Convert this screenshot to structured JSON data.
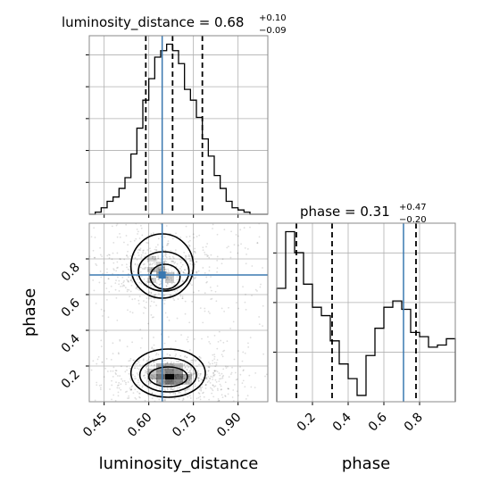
{
  "colors": {
    "truth": "#3a78b0",
    "histogram": "#000000",
    "contour": "#000000",
    "grid": "#b0b0b0",
    "density": "#000000"
  },
  "chart_data": {
    "type": "corner",
    "parameters": [
      "luminosity_distance",
      "phase"
    ],
    "truths": {
      "luminosity_distance": 0.645,
      "phase": 0.71
    },
    "quantiles": {
      "luminosity_distance": [
        0.59,
        0.68,
        0.78
      ],
      "phase": [
        0.11,
        0.31,
        0.78
      ]
    },
    "titles": [
      {
        "param": "luminosity_distance",
        "main": "luminosity_distance = 0.68",
        "upper": "+0.10",
        "lower": "−0.09"
      },
      {
        "param": "phase",
        "main": "phase = 0.31",
        "upper": "+0.47",
        "lower": "−0.20"
      }
    ],
    "panels": [
      {
        "id": "hist-luminosity_distance",
        "type": "histogram",
        "param": "luminosity_distance",
        "xlim": [
          0.4,
          1.0
        ],
        "bin_edges": [
          0.4,
          0.42,
          0.44,
          0.46,
          0.48,
          0.5,
          0.52,
          0.54,
          0.56,
          0.58,
          0.6,
          0.62,
          0.64,
          0.66,
          0.68,
          0.7,
          0.72,
          0.74,
          0.76,
          0.78,
          0.8,
          0.82,
          0.84,
          0.86,
          0.88,
          0.9,
          0.92,
          0.94,
          0.96,
          0.98,
          1.0
        ],
        "counts": [
          0,
          1,
          3,
          6,
          8,
          12,
          17,
          28,
          40,
          53,
          63,
          73,
          76,
          79,
          76,
          70,
          58,
          53,
          45,
          35,
          27,
          18,
          12,
          6,
          3,
          2,
          1,
          0,
          0,
          0
        ],
        "xticks": [
          0.45,
          0.6,
          0.75,
          0.9
        ],
        "yticks_count": 5,
        "show_tick_labels": false
      },
      {
        "id": "hist-phase",
        "type": "histogram",
        "param": "phase",
        "xlim": [
          0.0,
          1.0
        ],
        "bin_edges": [
          0.0,
          0.05,
          0.1,
          0.15,
          0.2,
          0.25,
          0.3,
          0.35,
          0.4,
          0.45,
          0.5,
          0.55,
          0.6,
          0.65,
          0.7,
          0.75,
          0.8,
          0.85,
          0.9,
          0.95,
          1.0
        ],
        "counts": [
          54,
          81,
          71,
          56,
          45,
          41,
          29,
          18,
          11,
          3,
          22,
          35,
          45,
          48,
          44,
          33,
          31,
          26,
          27,
          30
        ],
        "xticks": [
          0.2,
          0.4,
          0.6,
          0.8
        ],
        "xtick_labels": [
          "0.2",
          "0.4",
          "0.6",
          "0.8"
        ],
        "yticks_count": 3,
        "show_tick_labels": true,
        "xlabel": "phase"
      },
      {
        "id": "density-2d",
        "type": "2d-density",
        "x_param": "luminosity_distance",
        "y_param": "phase",
        "xlim": [
          0.4,
          1.0
        ],
        "ylim": [
          0.0,
          1.0
        ],
        "xticks": [
          0.45,
          0.6,
          0.75,
          0.9
        ],
        "xtick_labels": [
          "0.45",
          "0.60",
          "0.75",
          "0.90"
        ],
        "yticks": [
          0.2,
          0.4,
          0.6,
          0.8
        ],
        "ytick_labels": [
          "0.2",
          "0.4",
          "0.6",
          "0.8"
        ],
        "xlabel": "luminosity_distance",
        "ylabel": "phase",
        "modes": [
          {
            "x": 0.685,
            "y": 0.13,
            "sx": 0.08,
            "sy": 0.055,
            "weight": 1.0
          },
          {
            "x": 0.64,
            "y": 0.74,
            "sx": 0.07,
            "sy": 0.06,
            "weight": 0.55
          }
        ],
        "cells": [
          {
            "x": 0.67,
            "y": 0.14,
            "level": 0.98
          },
          {
            "x": 0.64,
            "y": 0.14,
            "level": 0.55
          },
          {
            "x": 0.7,
            "y": 0.14,
            "level": 0.6
          },
          {
            "x": 0.67,
            "y": 0.17,
            "level": 0.5
          },
          {
            "x": 0.67,
            "y": 0.11,
            "level": 0.55
          },
          {
            "x": 0.64,
            "y": 0.17,
            "level": 0.4
          },
          {
            "x": 0.7,
            "y": 0.17,
            "level": 0.42
          },
          {
            "x": 0.64,
            "y": 0.11,
            "level": 0.35
          },
          {
            "x": 0.7,
            "y": 0.11,
            "level": 0.45
          },
          {
            "x": 0.73,
            "y": 0.14,
            "level": 0.35
          },
          {
            "x": 0.61,
            "y": 0.14,
            "level": 0.3
          },
          {
            "x": 0.67,
            "y": 0.2,
            "level": 0.3
          },
          {
            "x": 0.64,
            "y": 0.2,
            "level": 0.28
          },
          {
            "x": 0.7,
            "y": 0.2,
            "level": 0.25
          },
          {
            "x": 0.61,
            "y": 0.17,
            "level": 0.22
          },
          {
            "x": 0.73,
            "y": 0.11,
            "level": 0.22
          },
          {
            "x": 0.64,
            "y": 0.74,
            "level": 0.3
          },
          {
            "x": 0.61,
            "y": 0.74,
            "level": 0.2
          },
          {
            "x": 0.64,
            "y": 0.71,
            "level": 0.3
          },
          {
            "x": 0.67,
            "y": 0.71,
            "level": 0.22
          },
          {
            "x": 0.64,
            "y": 0.77,
            "level": 0.18
          },
          {
            "x": 0.61,
            "y": 0.68,
            "level": 0.18
          },
          {
            "x": 0.67,
            "y": 0.68,
            "level": 0.2
          },
          {
            "x": 0.61,
            "y": 0.8,
            "level": 0.15
          }
        ],
        "contours": [
          {
            "level": "inner",
            "cx": 0.665,
            "cy": 0.14,
            "rx": 0.065,
            "ry": 0.055
          },
          {
            "level": "middle",
            "cx": 0.665,
            "cy": 0.15,
            "rx": 0.095,
            "ry": 0.095
          },
          {
            "level": "outer",
            "cx": 0.665,
            "cy": 0.16,
            "rx": 0.125,
            "ry": 0.135
          },
          {
            "level": "inner",
            "cx": 0.655,
            "cy": 0.7,
            "rx": 0.05,
            "ry": 0.07
          },
          {
            "level": "middle",
            "cx": 0.65,
            "cy": 0.73,
            "rx": 0.085,
            "ry": 0.11
          },
          {
            "level": "outer",
            "cx": 0.645,
            "cy": 0.76,
            "rx": 0.105,
            "ry": 0.18
          }
        ]
      }
    ]
  }
}
